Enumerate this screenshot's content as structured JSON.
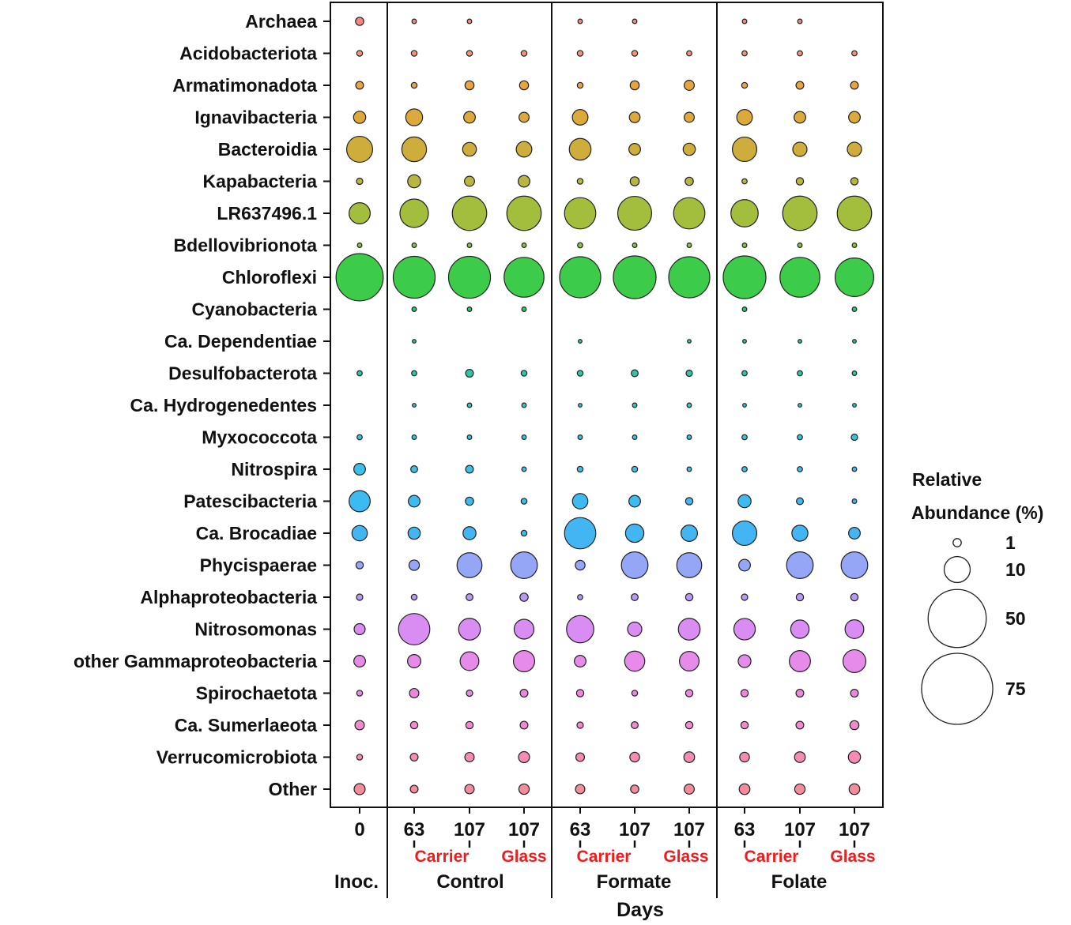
{
  "chart_data": {
    "type": "bubble",
    "xlabel": "Days",
    "taxa": [
      "Archaea",
      "Acidobacteriota",
      "Armatimonadota",
      "Ignavibacteria",
      "Bacteroidia",
      "Kapabacteria",
      "LR637496.1",
      "Bdellovibrionota",
      "Chloroflexi",
      "Cyanobacteria",
      "Ca. Dependentiae",
      "Desulfobacterota",
      "Ca. Hydrogenedentes",
      "Myxococcota",
      "Nitrospira",
      "Patescibacteria",
      "Ca. Brocadiae",
      "Phycispaerae",
      "Alphaproteobacteria",
      "Nitrosomonas",
      "other Gammaproteobacteria",
      "Spirochaetota",
      "Ca. Sumerlaeota",
      "Verrucomicrobiota",
      "Other"
    ],
    "taxa_colors": [
      "#F8877F",
      "#F39377",
      "#E8A43D",
      "#DDA93A",
      "#CFAD3C",
      "#B9B542",
      "#A3BE3C",
      "#86C23E",
      "#3DCC4A",
      "#2CC66C",
      "#2BC493",
      "#2DC7A8",
      "#30C9C0",
      "#34C6D8",
      "#3CBFE8",
      "#3DBBF0",
      "#42B5F2",
      "#95A6F7",
      "#B79AF5",
      "#D98DF2",
      "#E68BEA",
      "#EB88DE",
      "#F28BCD",
      "#F68BB4",
      "#F48C9C"
    ],
    "samples": [
      {
        "day": "0",
        "group": "Inoc.",
        "substrate": ""
      },
      {
        "day": "63",
        "group": "Control",
        "substrate": "Carrier"
      },
      {
        "day": "107",
        "group": "Control",
        "substrate": "Carrier"
      },
      {
        "day": "107",
        "group": "Control",
        "substrate": "Glass"
      },
      {
        "day": "63",
        "group": "Formate",
        "substrate": "Carrier"
      },
      {
        "day": "107",
        "group": "Formate",
        "substrate": "Carrier"
      },
      {
        "day": "107",
        "group": "Formate",
        "substrate": "Glass"
      },
      {
        "day": "63",
        "group": "Folate",
        "substrate": "Carrier"
      },
      {
        "day": "107",
        "group": "Folate",
        "substrate": "Carrier"
      },
      {
        "day": "107",
        "group": "Folate",
        "substrate": "Glass"
      }
    ],
    "group_labels": [
      "Inoc.",
      "Control",
      "Formate",
      "Folate"
    ],
    "substrate_labels": [
      {
        "text": "Carrier",
        "group": "Control"
      },
      {
        "text": "Glass",
        "group": "Control"
      },
      {
        "text": "Carrier",
        "group": "Formate"
      },
      {
        "text": "Glass",
        "group": "Formate"
      },
      {
        "text": "Carrier",
        "group": "Folate"
      },
      {
        "text": "Glass",
        "group": "Folate"
      }
    ],
    "substrate_color": "#EE1C1C",
    "abundance": [
      [
        1.0,
        0.3,
        0.3,
        0,
        0.3,
        0.3,
        0,
        0.3,
        0.3,
        0
      ],
      [
        0.5,
        0.5,
        0.5,
        0.5,
        0.5,
        0.5,
        0.4,
        0.4,
        0.4,
        0.4
      ],
      [
        0.9,
        0.5,
        1.2,
        1.2,
        0.5,
        1.2,
        1.5,
        0.5,
        0.9,
        0.9
      ],
      [
        2.2,
        4.2,
        2.0,
        1.5,
        3.6,
        1.7,
        1.5,
        3.6,
        2.0,
        2.0
      ],
      [
        10.0,
        9.0,
        2.8,
        3.6,
        7.0,
        2.0,
        2.2,
        8.8,
        3.0,
        3.0
      ],
      [
        0.6,
        2.5,
        1.5,
        2.0,
        0.5,
        1.2,
        1.0,
        0.4,
        0.8,
        0.8
      ],
      [
        6.6,
        12.0,
        17.5,
        17.5,
        14.5,
        17.0,
        14.5,
        11.0,
        17.5,
        17.5
      ],
      [
        0.3,
        0.3,
        0.3,
        0.3,
        0.4,
        0.3,
        0.3,
        0.3,
        0.3,
        0.3
      ],
      [
        33.0,
        26.0,
        26.0,
        23.5,
        25.0,
        27.0,
        25.0,
        27.0,
        23.5,
        22.0
      ],
      [
        0,
        0.3,
        0.3,
        0.3,
        0,
        0,
        0,
        0.3,
        0,
        0.3
      ],
      [
        0,
        0.2,
        0,
        0,
        0.2,
        0,
        0.2,
        0.2,
        0.2,
        0.2
      ],
      [
        0.4,
        0.4,
        0.9,
        0.5,
        0.5,
        0.7,
        0.6,
        0.4,
        0.4,
        0.3
      ],
      [
        0,
        0.2,
        0.3,
        0.3,
        0.2,
        0.3,
        0.3,
        0.2,
        0.2,
        0.2
      ],
      [
        0.4,
        0.3,
        0.3,
        0.3,
        0.3,
        0.3,
        0.3,
        0.4,
        0.4,
        0.6
      ],
      [
        2.0,
        0.7,
        0.9,
        0.3,
        0.5,
        0.5,
        0.3,
        0.4,
        0.4,
        0.3
      ],
      [
        6.6,
        2.0,
        1.0,
        0.5,
        3.5,
        2.0,
        0.8,
        2.5,
        0.7,
        0.3
      ],
      [
        3.5,
        2.2,
        2.5,
        0.5,
        14.5,
        5.0,
        4.0,
        8.8,
        3.8,
        2.0
      ],
      [
        0.8,
        1.6,
        9.2,
        10.5,
        1.4,
        10.5,
        9.2,
        2.0,
        10.5,
        10.5
      ],
      [
        0.6,
        0.5,
        0.7,
        1.0,
        0.4,
        0.7,
        0.8,
        0.6,
        0.8,
        0.8
      ],
      [
        1.8,
        14.5,
        7.0,
        5.8,
        11.0,
        3.0,
        7.0,
        6.8,
        5.0,
        5.2
      ],
      [
        2.0,
        2.6,
        5.2,
        6.7,
        2.0,
        6.0,
        5.7,
        2.4,
        6.6,
        7.7
      ],
      [
        0.5,
        1.3,
        0.6,
        0.9,
        0.8,
        0.5,
        0.8,
        0.8,
        0.9,
        0.9
      ],
      [
        1.3,
        0.8,
        0.8,
        0.9,
        0.6,
        0.7,
        0.8,
        0.8,
        0.9,
        1.2
      ],
      [
        0.5,
        0.9,
        1.3,
        1.8,
        1.1,
        1.4,
        1.7,
        1.4,
        1.7,
        2.2
      ],
      [
        1.8,
        0.9,
        1.3,
        1.6,
        1.3,
        1.0,
        1.5,
        1.7,
        1.6,
        1.7
      ]
    ],
    "legend": {
      "title_line1": "Relative",
      "title_line2": "Abundance (%)",
      "entries": [
        {
          "label": "1",
          "value": 1
        },
        {
          "label": "10",
          "value": 10
        },
        {
          "label": "50",
          "value": 50
        },
        {
          "label": "75",
          "value": 75
        }
      ]
    }
  }
}
